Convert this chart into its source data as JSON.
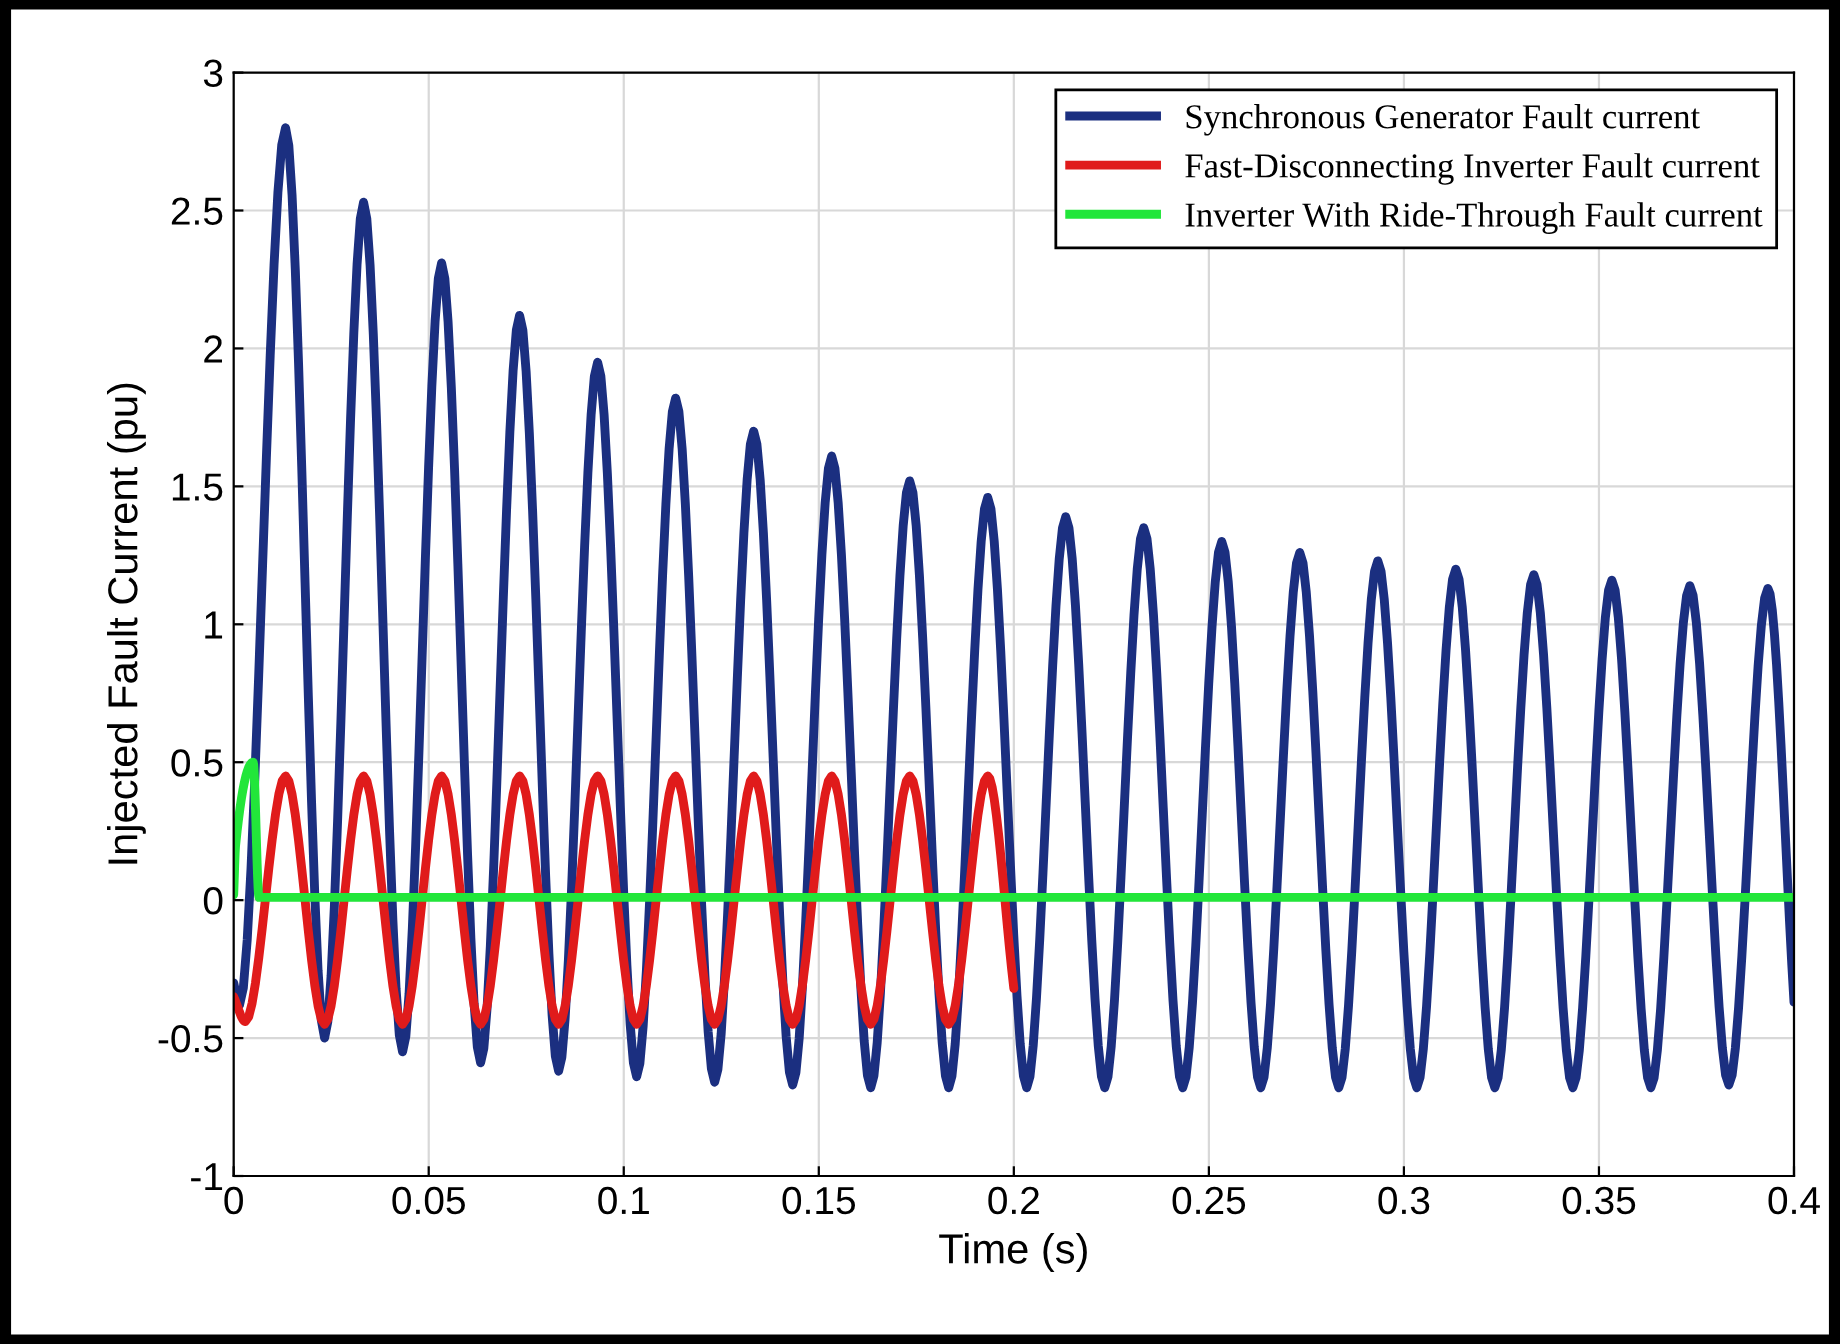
{
  "chart_data": {
    "type": "line",
    "xlabel": "Time (s)",
    "ylabel": "Injected Fault Current (pu)",
    "xlim": [
      0,
      0.4
    ],
    "ylim": [
      -1,
      3
    ],
    "xticks": [
      0,
      0.05,
      0.1,
      0.15,
      0.2,
      0.25,
      0.3,
      0.35,
      0.4
    ],
    "yticks": [
      -1,
      -0.5,
      0,
      0.5,
      1,
      1.5,
      2,
      2.5,
      3
    ],
    "grid": true,
    "legend": "top right",
    "line_style": "solid",
    "marker": "none",
    "series": [
      {
        "name": "Synchronous Generator Fault current",
        "color": "#1b2f80",
        "x": [
          0,
          0.0015,
          0.0133,
          0.0233,
          0.0333,
          0.0433,
          0.0533,
          0.0633,
          0.0733,
          0.0833,
          0.0933,
          0.1033,
          0.1133,
          0.1233,
          0.1333,
          0.1433,
          0.1533,
          0.1633,
          0.1733,
          0.1833,
          0.1933,
          0.2033,
          0.2133,
          0.2233,
          0.2333,
          0.2433,
          0.2533,
          0.2633,
          0.2733,
          0.2833,
          0.2933,
          0.3033,
          0.3133,
          0.3233,
          0.3333,
          0.3433,
          0.3533,
          0.3633,
          0.3733,
          0.3833,
          0.3933,
          0.4
        ],
        "values": [
          -0.3,
          -0.38,
          2.8,
          -0.5,
          2.53,
          -0.55,
          2.31,
          -0.59,
          2.12,
          -0.62,
          1.95,
          -0.64,
          1.82,
          -0.66,
          1.7,
          -0.67,
          1.61,
          -0.68,
          1.52,
          -0.68,
          1.46,
          -0.68,
          1.39,
          -0.68,
          1.35,
          -0.68,
          1.3,
          -0.68,
          1.26,
          -0.68,
          1.23,
          -0.68,
          1.2,
          -0.68,
          1.18,
          -0.68,
          1.16,
          -0.68,
          1.14,
          -0.67,
          1.13,
          -0.37
        ]
      },
      {
        "name": "Fast-Disconnecting Inverter Fault current",
        "color": "#e01b1b",
        "x": [
          0,
          0.003,
          0.0133,
          0.0233,
          0.0333,
          0.0433,
          0.0533,
          0.0633,
          0.0733,
          0.0833,
          0.0933,
          0.1033,
          0.1133,
          0.1233,
          0.1333,
          0.1433,
          0.1533,
          0.1633,
          0.1733,
          0.1833,
          0.1933,
          0.2
        ],
        "values": [
          -0.35,
          -0.44,
          0.45,
          -0.45,
          0.45,
          -0.45,
          0.45,
          -0.45,
          0.45,
          -0.45,
          0.45,
          -0.45,
          0.45,
          -0.45,
          0.45,
          -0.45,
          0.45,
          -0.45,
          0.45,
          -0.45,
          0.45,
          -0.32
        ]
      },
      {
        "name": "Inverter With Ride-Through Fault current",
        "color": "#22e63a",
        "x": [
          0,
          0.0005,
          0.005,
          0.0065,
          0.4
        ],
        "values": [
          0.02,
          0.2,
          0.5,
          0.01,
          0.01
        ]
      }
    ]
  }
}
